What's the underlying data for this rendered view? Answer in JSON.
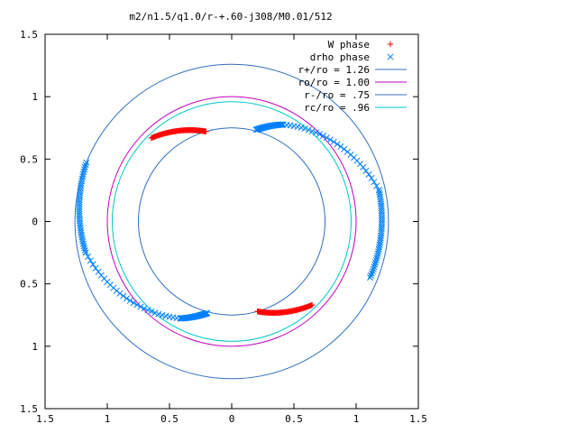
{
  "chart_data": {
    "type": "scatter",
    "title": "m2/n1.5/q1.0/r-+.60-j308/M0.01/512",
    "xlabel": "",
    "ylabel": "",
    "xlim": [
      -1.5,
      1.5
    ],
    "ylim": [
      -1.5,
      1.5
    ],
    "x_tick_labels": [
      "1.5",
      "1",
      "0.5",
      "0",
      "0.5",
      "1",
      "1.5"
    ],
    "x_tick_values": [
      -1.5,
      -1,
      -0.5,
      0,
      0.5,
      1,
      1.5
    ],
    "y_tick_labels": [
      "1.5",
      "1",
      "0.5",
      "0",
      "0.5",
      "1",
      "1.5"
    ],
    "y_tick_values": [
      1.5,
      1,
      0.5,
      0,
      -0.5,
      -1,
      -1.5
    ],
    "grid": false,
    "legend_position": "top-right",
    "legend": [
      {
        "label": "W phase",
        "kind": "point",
        "marker": "plus",
        "color": "#ff0000"
      },
      {
        "label": "drho phase",
        "kind": "point",
        "marker": "cross",
        "color": "#0080ff"
      },
      {
        "label": "r+/ro = 1.26",
        "kind": "circle",
        "radius": 1.26,
        "color": "#3070c0"
      },
      {
        "label": "ro/ro = 1.00",
        "kind": "circle",
        "radius": 1.0,
        "color": "#c000c0"
      },
      {
        "label": "r-/ro = .75",
        "kind": "circle",
        "radius": 0.75,
        "color": "#3070c0"
      },
      {
        "label": "rc/ro = .96",
        "kind": "circle",
        "radius": 0.96,
        "color": "#00c8c8"
      }
    ],
    "series": [
      {
        "name": "W phase",
        "color": "#ff0000",
        "marker": "plus",
        "arcs": [
          {
            "r_start": 0.93,
            "r_end": 0.75,
            "theta_start_deg": 134,
            "theta_end_deg": 106,
            "count": 70
          },
          {
            "r_start": 0.75,
            "r_end": 0.93,
            "theta_start_deg": 286,
            "theta_end_deg": 314,
            "count": 70
          }
        ]
      },
      {
        "name": "drho phase",
        "color": "#0080ff",
        "marker": "cross",
        "arcs": [
          {
            "r_start": 0.76,
            "r_end": 0.88,
            "theta_start_deg": 75,
            "theta_end_deg": 62,
            "count": 30
          },
          {
            "r_start": 0.88,
            "r_end": 1.21,
            "theta_start_deg": 62,
            "theta_end_deg": 12,
            "count": 30
          },
          {
            "r_start": 1.21,
            "r_end": 1.2,
            "theta_start_deg": 12,
            "theta_end_deg": -22,
            "count": 40
          },
          {
            "r_start": 1.26,
            "r_end": 1.2,
            "theta_start_deg": 158,
            "theta_end_deg": 192,
            "count": 40
          },
          {
            "r_start": 1.2,
            "r_end": 0.88,
            "theta_start_deg": 192,
            "theta_end_deg": 242,
            "count": 30
          },
          {
            "r_start": 0.88,
            "r_end": 0.76,
            "theta_start_deg": 242,
            "theta_end_deg": 255,
            "count": 30
          }
        ]
      }
    ]
  }
}
